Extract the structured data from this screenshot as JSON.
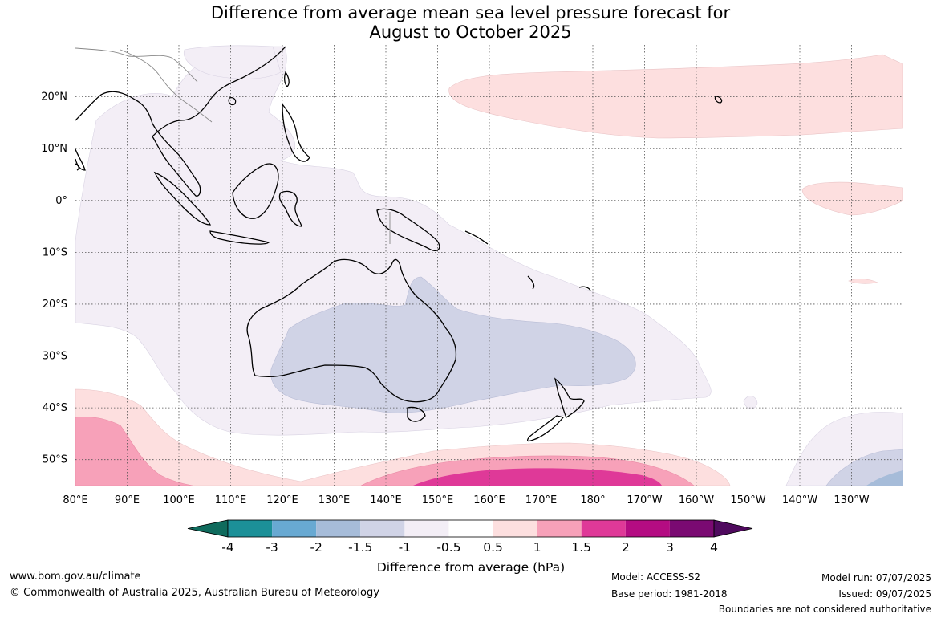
{
  "title": {
    "line1": "Difference from average mean sea level pressure forecast for",
    "line2": "August to October 2025"
  },
  "map": {
    "lat_labels": [
      "20°N",
      "10°N",
      "0°",
      "10°S",
      "20°S",
      "30°S",
      "40°S",
      "50°S"
    ],
    "lon_labels": [
      "80°E",
      "90°E",
      "100°E",
      "110°E",
      "120°E",
      "130°E",
      "140°E",
      "150°E",
      "160°E",
      "170°E",
      "180°",
      "170°W",
      "160°W",
      "150°W",
      "140°W",
      "130°W"
    ],
    "lat_range": [
      -55,
      30
    ],
    "lon_range": [
      80,
      240
    ],
    "gridlines": "dotted"
  },
  "colorbar": {
    "label": "Difference from average (hPa)",
    "ticks": [
      "-4",
      "-3",
      "-2",
      "-1.5",
      "-1",
      "-0.5",
      "0.5",
      "1",
      "1.5",
      "2",
      "3",
      "4"
    ],
    "colors": [
      "#0f6b5d",
      "#1c9098",
      "#68a9d2",
      "#a6bcd9",
      "#d0d3e6",
      "#f3eef6",
      "#ffffff",
      "#fddfdf",
      "#f7a1b9",
      "#df3998",
      "#b40c82",
      "#7a0a72",
      "#4f0a5e"
    ]
  },
  "footer": {
    "website": "www.bom.gov.au/climate",
    "copyright": "© Commonwealth of Australia 2025, Australian Bureau of Meteorology",
    "model": "Model: ACCESS-S2",
    "base_period": "Base period: 1981-2018",
    "model_run": "Model run: 07/07/2025",
    "issued": "Issued: 09/07/2025",
    "disclaimer": "Boundaries are not considered authoritative"
  }
}
